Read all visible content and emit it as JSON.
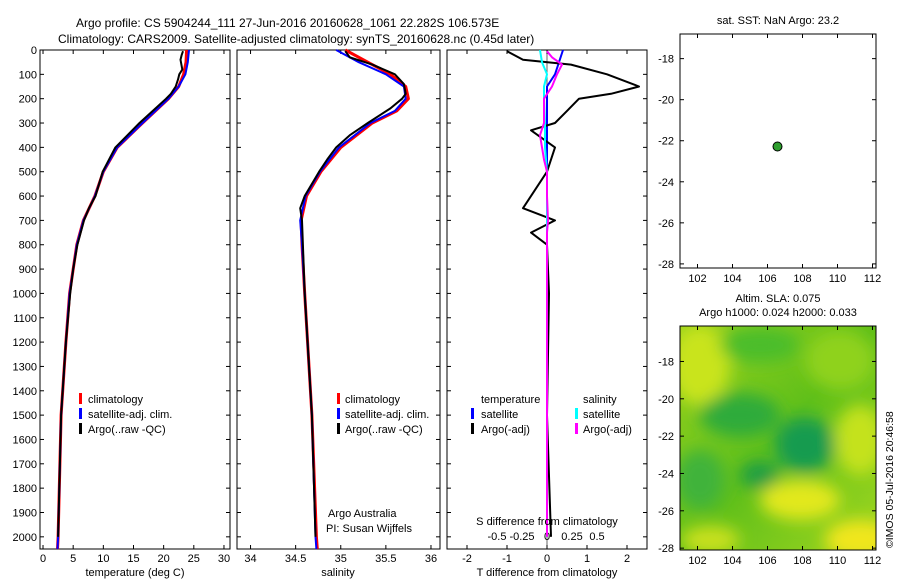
{
  "header": {
    "line1": "Argo profile: CS 5904244_111 27-Jun-2016 20160628_1061 22.282S 106.573E",
    "line2": "Climatology: CARS2009. Satellite-adjusted climatology: synTS_20160628.nc (0.45d later)"
  },
  "colors": {
    "climatology": "#ff0000",
    "satellite": "#0000ff",
    "argo": "#000000",
    "sat_salinity": "#00ffff",
    "argo_salinity": "#ff00ff",
    "float_marker": "#2e9e2e"
  },
  "depth_ticks": [
    "0",
    "100",
    "200",
    "300",
    "400",
    "500",
    "600",
    "700",
    "800",
    "900",
    "1000",
    "1100",
    "1200",
    "1300",
    "1400",
    "1500",
    "1600",
    "1700",
    "1800",
    "1900",
    "2000"
  ],
  "temp_panel": {
    "xlabel": "temperature (deg C)",
    "ticks": [
      "0",
      "5",
      "10",
      "15",
      "20",
      "25",
      "30"
    ],
    "legend": [
      "climatology",
      "satellite-adj. clim.",
      "Argo(..raw -QC)"
    ]
  },
  "sal_panel": {
    "xlabel": "salinity",
    "ticks": [
      "34",
      "34.5",
      "35",
      "35.5",
      "36"
    ],
    "legend": [
      "climatology",
      "satellite-adj. clim.",
      "Argo(..raw -QC)"
    ],
    "note1": "Argo Australia",
    "note2": "PI: Susan Wijffels"
  },
  "diff_panel": {
    "xlabel": "T difference from climatology",
    "top_label": "S difference from climatology",
    "t_ticks": [
      "-2",
      "-1",
      "0",
      "1",
      "2"
    ],
    "s_ticks": [
      "-0.5",
      "-0.25",
      "0",
      "0.25",
      "0.5"
    ],
    "legend_temp_title": "temperature",
    "legend_temp": [
      "satellite",
      "Argo(-adj)"
    ],
    "legend_sal_title": "salinity",
    "legend_sal": [
      "satellite",
      "Argo(-adj)"
    ]
  },
  "map_top": {
    "title": "sat. SST: NaN Argo: 23.2",
    "lat_ticks": [
      "-18",
      "-20",
      "-22",
      "-24",
      "-26",
      "-28"
    ],
    "lon_ticks": [
      "102",
      "104",
      "106",
      "108",
      "110",
      "112"
    ]
  },
  "map_bottom": {
    "title1": "Altim. SLA: 0.075",
    "title2": "Argo h1000: 0.024 h2000: 0.033",
    "lat_ticks": [
      "-18",
      "-20",
      "-22",
      "-24",
      "-26",
      "-28"
    ],
    "lon_ticks": [
      "102",
      "104",
      "106",
      "108",
      "110",
      "112"
    ]
  },
  "side_stamp": "©IMOS 05-Jul-2016 20:46:58",
  "chart_data": [
    {
      "type": "line",
      "panel": "temperature",
      "xlabel": "temperature (deg C)",
      "xlim": [
        -0.5,
        31
      ],
      "ylim": [
        2050,
        0
      ],
      "series": [
        {
          "name": "climatology",
          "depth": [
            0,
            50,
            100,
            150,
            200,
            300,
            400,
            500,
            600,
            700,
            800,
            1000,
            1200,
            1500,
            1700,
            2000,
            2050
          ],
          "values": [
            23.8,
            23.7,
            23.3,
            22.5,
            20.8,
            16.5,
            12.3,
            10.0,
            8.6,
            6.7,
            5.6,
            4.4,
            3.8,
            3.0,
            2.8,
            2.5,
            2.4
          ]
        },
        {
          "name": "satellite-adj. clim.",
          "depth": [
            0,
            50,
            100,
            150,
            200,
            300,
            400,
            500,
            600,
            700,
            800,
            1000,
            1200,
            1500,
            1700,
            2000,
            2050
          ],
          "values": [
            24.2,
            24.0,
            23.6,
            22.5,
            20.8,
            16.5,
            12.3,
            10.0,
            8.6,
            6.7,
            5.6,
            4.4,
            3.8,
            3.0,
            2.8,
            2.5,
            2.4
          ]
        },
        {
          "name": "Argo(..raw -QC)",
          "depth": [
            5,
            20,
            40,
            80,
            100,
            120,
            150,
            180,
            200,
            250,
            300,
            400,
            500,
            600,
            650,
            700,
            800,
            900,
            1000,
            1200,
            1500,
            1700,
            2000
          ],
          "values": [
            23.2,
            23.0,
            22.8,
            23.1,
            22.6,
            22.4,
            22.0,
            21.2,
            20.4,
            18.2,
            16.0,
            12.0,
            9.9,
            8.7,
            7.6,
            6.8,
            5.7,
            5.0,
            4.5,
            3.8,
            3.0,
            2.8,
            2.5
          ]
        }
      ]
    },
    {
      "type": "line",
      "panel": "salinity",
      "xlabel": "salinity",
      "xlim": [
        33.85,
        36.1
      ],
      "ylim": [
        2050,
        0
      ],
      "series": [
        {
          "name": "climatology",
          "depth": [
            0,
            50,
            100,
            150,
            200,
            250,
            300,
            400,
            500,
            600,
            700,
            800,
            1000,
            1500,
            2000,
            2050
          ],
          "values": [
            35.05,
            35.3,
            35.55,
            35.72,
            35.75,
            35.62,
            35.35,
            35.0,
            34.78,
            34.62,
            34.56,
            34.57,
            34.6,
            34.68,
            34.73,
            34.74
          ]
        },
        {
          "name": "satellite-adj. clim.",
          "depth": [
            0,
            50,
            100,
            150,
            200,
            250,
            300,
            400,
            500,
            600,
            700,
            800,
            1000,
            1500,
            2000,
            2050
          ],
          "values": [
            34.95,
            35.2,
            35.5,
            35.7,
            35.72,
            35.6,
            35.33,
            34.98,
            34.77,
            34.61,
            34.55,
            34.57,
            34.6,
            34.68,
            34.72,
            34.73
          ]
        },
        {
          "name": "Argo(..raw -QC)",
          "depth": [
            5,
            30,
            60,
            100,
            140,
            180,
            200,
            240,
            300,
            350,
            400,
            450,
            500,
            600,
            650,
            700,
            800,
            1000,
            1500,
            2000
          ],
          "values": [
            35.05,
            35.1,
            35.35,
            35.6,
            35.7,
            35.72,
            35.68,
            35.55,
            35.3,
            35.1,
            34.95,
            34.85,
            34.76,
            34.6,
            34.55,
            34.57,
            34.58,
            34.6,
            34.68,
            34.72
          ]
        }
      ]
    },
    {
      "type": "line",
      "panel": "difference",
      "xlabel": "T difference from climatology",
      "xlim": [
        -2.5,
        2.5
      ],
      "ylim": [
        2050,
        0
      ],
      "series": [
        {
          "name": "temperature satellite",
          "depth": [
            0,
            50,
            100,
            150,
            200,
            400,
            600,
            1000,
            1500,
            2000
          ],
          "values": [
            0.4,
            0.3,
            0.2,
            0.0,
            0.0,
            0.0,
            0.0,
            0.0,
            0.0,
            0.0
          ]
        },
        {
          "name": "temperature Argo(-adj)",
          "depth": [
            5,
            40,
            60,
            100,
            150,
            180,
            200,
            250,
            300,
            330,
            400,
            500,
            650,
            700,
            750,
            800,
            1000,
            1500,
            2000
          ],
          "values": [
            -1.0,
            -0.6,
            0.6,
            1.5,
            2.3,
            1.6,
            0.8,
            0.5,
            0.2,
            -0.4,
            0.2,
            0.0,
            -0.6,
            0.2,
            -0.4,
            0.0,
            0.05,
            0.0,
            0.1
          ]
        },
        {
          "name": "salinity satellite",
          "depth": [
            0,
            50,
            100,
            150,
            200,
            300,
            400,
            500,
            600,
            700,
            800,
            1000,
            1500,
            2000
          ],
          "values": [
            -0.07,
            -0.05,
            0.0,
            -0.03,
            -0.03,
            -0.02,
            -0.02,
            0.0,
            0.0,
            0.0,
            0.0,
            0.0,
            0.0,
            0.0
          ]
        },
        {
          "name": "salinity Argo(-adj)",
          "depth": [
            5,
            30,
            60,
            100,
            150,
            200,
            300,
            350,
            400,
            450,
            500,
            600,
            700,
            750,
            800,
            1000,
            1500,
            2000
          ],
          "values": [
            0.0,
            0.05,
            0.15,
            0.1,
            0.05,
            -0.03,
            -0.03,
            -0.07,
            -0.05,
            -0.03,
            0.0,
            0.0,
            0.01,
            0.0,
            0.0,
            0.0,
            0.0,
            0.0
          ]
        }
      ]
    },
    {
      "type": "scatter",
      "panel": "map-top",
      "xlim": [
        101,
        112.2
      ],
      "ylim": [
        -28.2,
        -16.8
      ],
      "series": [
        {
          "name": "",
          "x": [
            106.573
          ],
          "y": [
            -22.282
          ]
        }
      ]
    }
  ]
}
